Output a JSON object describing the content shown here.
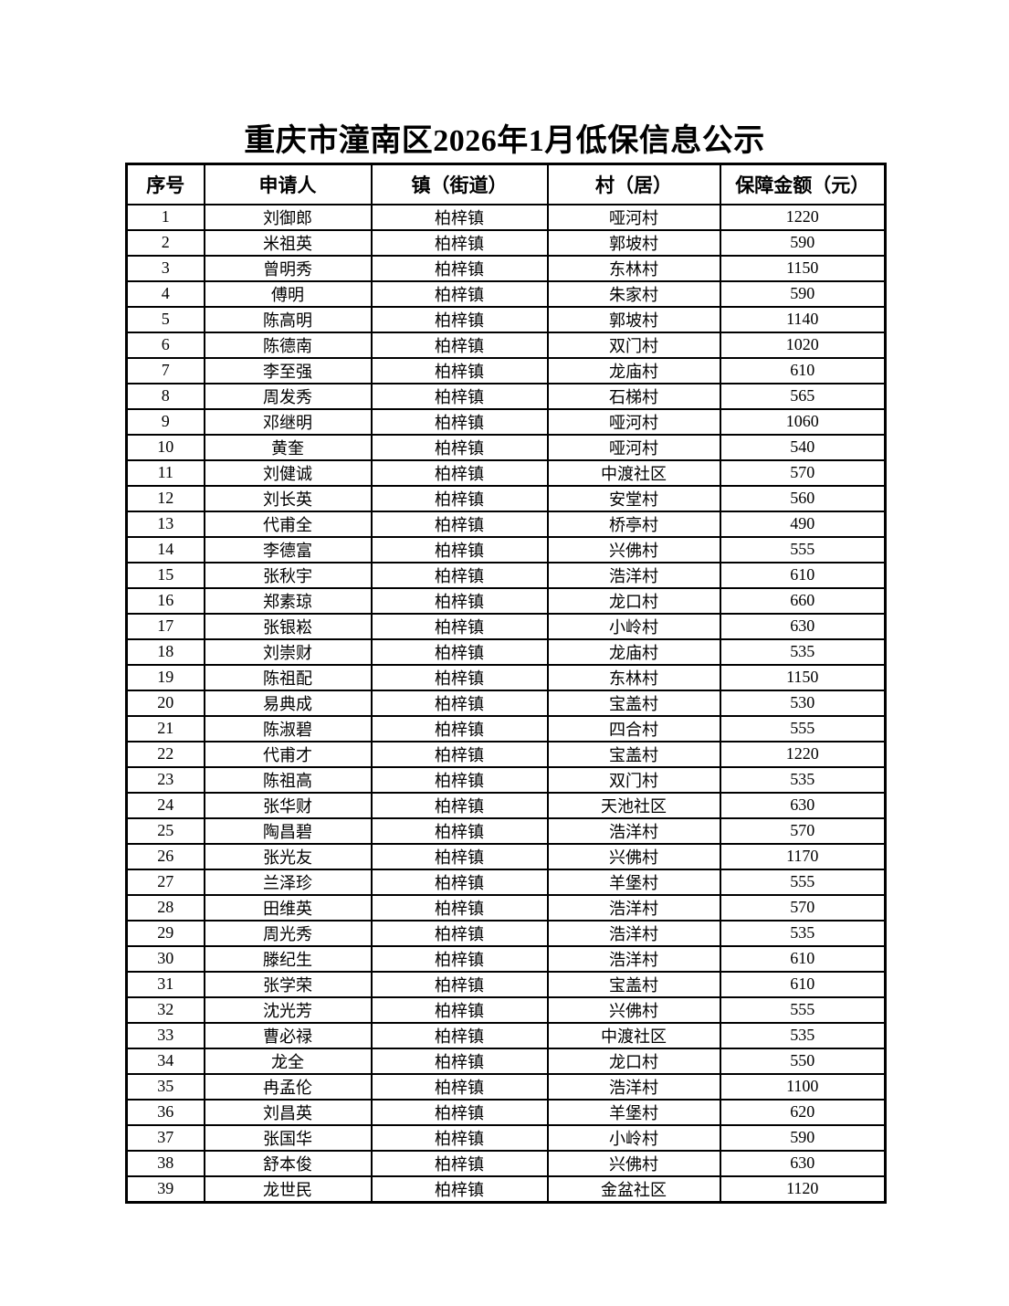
{
  "page": {
    "title": "重庆市潼南区2026年1月低保信息公示"
  },
  "table": {
    "headers": [
      "序号",
      "申请人",
      "镇（街道）",
      "村（居）",
      "保障金额（元）"
    ],
    "rows": [
      [
        "1",
        "刘御郎",
        "柏梓镇",
        "哑河村",
        "1220"
      ],
      [
        "2",
        "米祖英",
        "柏梓镇",
        "郭坡村",
        "590"
      ],
      [
        "3",
        "曾明秀",
        "柏梓镇",
        "东林村",
        "1150"
      ],
      [
        "4",
        "傅明",
        "柏梓镇",
        "朱家村",
        "590"
      ],
      [
        "5",
        "陈高明",
        "柏梓镇",
        "郭坡村",
        "1140"
      ],
      [
        "6",
        "陈德南",
        "柏梓镇",
        "双门村",
        "1020"
      ],
      [
        "7",
        "李至强",
        "柏梓镇",
        "龙庙村",
        "610"
      ],
      [
        "8",
        "周发秀",
        "柏梓镇",
        "石梯村",
        "565"
      ],
      [
        "9",
        "邓继明",
        "柏梓镇",
        "哑河村",
        "1060"
      ],
      [
        "10",
        "黄奎",
        "柏梓镇",
        "哑河村",
        "540"
      ],
      [
        "11",
        "刘健诚",
        "柏梓镇",
        "中渡社区",
        "570"
      ],
      [
        "12",
        "刘长英",
        "柏梓镇",
        "安堂村",
        "560"
      ],
      [
        "13",
        "代甫全",
        "柏梓镇",
        "桥亭村",
        "490"
      ],
      [
        "14",
        "李德富",
        "柏梓镇",
        "兴佛村",
        "555"
      ],
      [
        "15",
        "张秋宇",
        "柏梓镇",
        "浩洋村",
        "610"
      ],
      [
        "16",
        "郑素琼",
        "柏梓镇",
        "龙口村",
        "660"
      ],
      [
        "17",
        "张银崧",
        "柏梓镇",
        "小岭村",
        "630"
      ],
      [
        "18",
        "刘崇财",
        "柏梓镇",
        "龙庙村",
        "535"
      ],
      [
        "19",
        "陈祖配",
        "柏梓镇",
        "东林村",
        "1150"
      ],
      [
        "20",
        "易典成",
        "柏梓镇",
        "宝盖村",
        "530"
      ],
      [
        "21",
        "陈淑碧",
        "柏梓镇",
        "四合村",
        "555"
      ],
      [
        "22",
        "代甫才",
        "柏梓镇",
        "宝盖村",
        "1220"
      ],
      [
        "23",
        "陈祖高",
        "柏梓镇",
        "双门村",
        "535"
      ],
      [
        "24",
        "张华财",
        "柏梓镇",
        "天池社区",
        "630"
      ],
      [
        "25",
        "陶昌碧",
        "柏梓镇",
        "浩洋村",
        "570"
      ],
      [
        "26",
        "张光友",
        "柏梓镇",
        "兴佛村",
        "1170"
      ],
      [
        "27",
        "兰泽珍",
        "柏梓镇",
        "羊堡村",
        "555"
      ],
      [
        "28",
        "田维英",
        "柏梓镇",
        "浩洋村",
        "570"
      ],
      [
        "29",
        "周光秀",
        "柏梓镇",
        "浩洋村",
        "535"
      ],
      [
        "30",
        "滕纪生",
        "柏梓镇",
        "浩洋村",
        "610"
      ],
      [
        "31",
        "张学荣",
        "柏梓镇",
        "宝盖村",
        "610"
      ],
      [
        "32",
        "沈光芳",
        "柏梓镇",
        "兴佛村",
        "555"
      ],
      [
        "33",
        "曹必禄",
        "柏梓镇",
        "中渡社区",
        "535"
      ],
      [
        "34",
        "龙全",
        "柏梓镇",
        "龙口村",
        "550"
      ],
      [
        "35",
        "冉孟伦",
        "柏梓镇",
        "浩洋村",
        "1100"
      ],
      [
        "36",
        "刘昌英",
        "柏梓镇",
        "羊堡村",
        "620"
      ],
      [
        "37",
        "张国华",
        "柏梓镇",
        "小岭村",
        "590"
      ],
      [
        "38",
        "舒本俊",
        "柏梓镇",
        "兴佛村",
        "630"
      ],
      [
        "39",
        "龙世民",
        "柏梓镇",
        "金盆社区",
        "1120"
      ]
    ]
  }
}
